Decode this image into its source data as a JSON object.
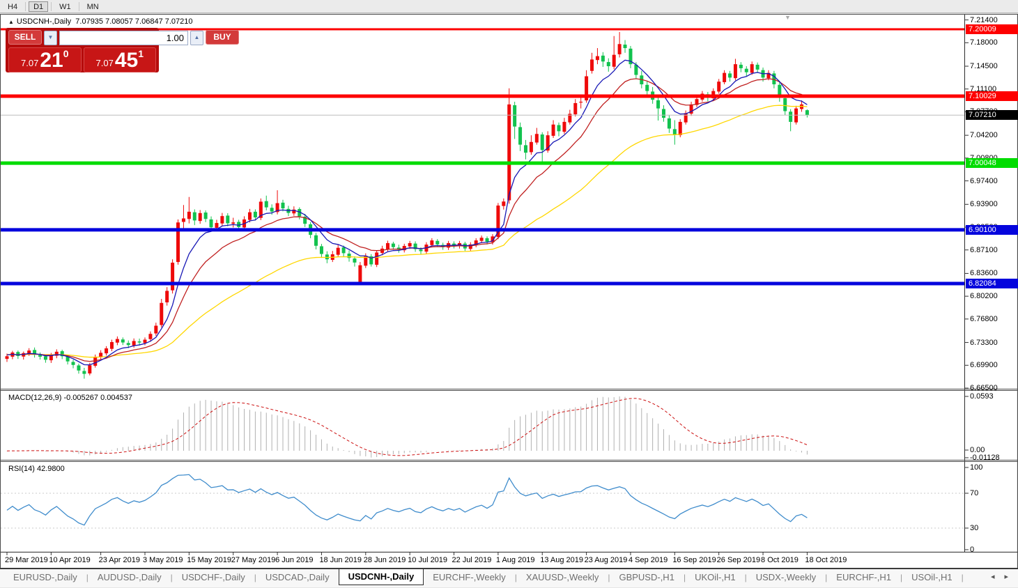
{
  "toolbar": {
    "timeframes": [
      "H4",
      "D1",
      "W1",
      "MN"
    ],
    "active_timeframe": "D1"
  },
  "chart": {
    "title": {
      "expand_icon": "▲",
      "symbol_period": "USDCNH-,Daily",
      "ohlc": "7.07935 7.08057 7.06847 7.07210"
    },
    "shift_marker_icon": "▼",
    "trade_panel": {
      "sell_label": "SELL",
      "buy_label": "BUY",
      "volume": "1.00",
      "volume_down_icon": "▼",
      "volume_up_icon": "▲",
      "sell_price_small": "7.07",
      "sell_price_big": "21",
      "sell_price_sup": "0",
      "buy_price_small": "7.07",
      "buy_price_big": "45",
      "buy_price_sup": "1"
    },
    "price_axis": {
      "ticks": [
        "7.21400",
        "7.18000",
        "7.14500",
        "7.11100",
        "7.07700",
        "7.04200",
        "7.00800",
        "6.97400",
        "6.93900",
        "6.90500",
        "6.87100",
        "6.83600",
        "6.80200",
        "6.76800",
        "6.73300",
        "6.69900",
        "6.66500"
      ]
    },
    "hlines": [
      {
        "label": "7.20009",
        "price": 7.20009,
        "color": "#fe0000",
        "width": 3
      },
      {
        "label": "7.10029",
        "price": 7.10029,
        "color": "#fe0000",
        "width": 5
      },
      {
        "label": "7.00048",
        "price": 7.00048,
        "color": "#00dc00",
        "width": 5
      },
      {
        "label": "6.90100",
        "price": 6.901,
        "color": "#0505dd",
        "width": 5
      },
      {
        "label": "6.82084",
        "price": 6.82084,
        "color": "#0505dd",
        "width": 5
      }
    ],
    "current_price": {
      "label": "7.07210",
      "price": 7.0721,
      "line_color": "#bcbcbc",
      "badge_bg": "#000000"
    },
    "colors": {
      "bull": "#ee0a0a",
      "bear": "#12c24e",
      "ma_fast": "#1717b5",
      "ma_mid": "#c02020",
      "ma_slow": "#ffd700"
    },
    "ma_periods": {
      "fast": 7,
      "mid": 14,
      "slow": 45
    },
    "date_axis": {
      "labels": [
        {
          "text": "29 Mar 2019",
          "i": 0
        },
        {
          "text": "10 Apr 2019",
          "i": 8
        },
        {
          "text": "23 Apr 2019",
          "i": 17
        },
        {
          "text": "3 May 2019",
          "i": 25
        },
        {
          "text": "15 May 2019",
          "i": 33
        },
        {
          "text": "27 May 2019",
          "i": 41
        },
        {
          "text": "6 Jun 2019",
          "i": 49
        },
        {
          "text": "18 Jun 2019",
          "i": 57
        },
        {
          "text": "28 Jun 2019",
          "i": 65
        },
        {
          "text": "10 Jul 2019",
          "i": 73
        },
        {
          "text": "22 Jul 2019",
          "i": 81
        },
        {
          "text": "1 Aug 2019",
          "i": 89
        },
        {
          "text": "13 Aug 2019",
          "i": 97
        },
        {
          "text": "23 Aug 2019",
          "i": 105
        },
        {
          "text": "4 Sep 2019",
          "i": 113
        },
        {
          "text": "16 Sep 2019",
          "i": 121
        },
        {
          "text": "26 Sep 2019",
          "i": 129
        },
        {
          "text": "8 Oct 2019",
          "i": 137
        },
        {
          "text": "18 Oct 2019",
          "i": 145
        }
      ]
    },
    "candles": [
      [
        6.7085,
        6.7165,
        6.704,
        6.7125
      ],
      [
        6.7118,
        6.7205,
        6.708,
        6.718
      ],
      [
        6.7188,
        6.721,
        6.7085,
        6.7128
      ],
      [
        6.712,
        6.7195,
        6.7075,
        6.7172
      ],
      [
        6.7165,
        6.7245,
        6.713,
        6.721
      ],
      [
        6.7218,
        6.7255,
        6.7105,
        6.7146
      ],
      [
        6.714,
        6.718,
        6.7075,
        6.7118
      ],
      [
        6.7125,
        6.715,
        6.7028,
        6.7072
      ],
      [
        6.7065,
        6.7175,
        6.7025,
        6.714
      ],
      [
        6.7132,
        6.7228,
        6.7095,
        6.7192
      ],
      [
        6.72,
        6.7222,
        6.7082,
        6.7125
      ],
      [
        6.7118,
        6.714,
        6.7002,
        6.7048
      ],
      [
        6.704,
        6.7075,
        6.6945,
        6.6995
      ],
      [
        6.6988,
        6.7015,
        6.6865,
        6.6912
      ],
      [
        6.6905,
        6.6952,
        6.679,
        6.6862
      ],
      [
        6.6868,
        6.7025,
        6.684,
        6.699
      ],
      [
        6.6982,
        6.715,
        6.6955,
        6.7118
      ],
      [
        6.711,
        6.7215,
        6.707,
        6.7176
      ],
      [
        6.7168,
        6.7275,
        6.7135,
        6.7242
      ],
      [
        6.7235,
        6.7372,
        6.72,
        6.7336
      ],
      [
        6.7328,
        6.742,
        6.729,
        6.7382
      ],
      [
        6.7375,
        6.7405,
        6.7292,
        6.733
      ],
      [
        6.7322,
        6.736,
        6.7245,
        6.7292
      ],
      [
        6.7285,
        6.739,
        6.7252,
        6.7352
      ],
      [
        6.7345,
        6.7388,
        6.7285,
        6.733
      ],
      [
        6.7322,
        6.7405,
        6.7288,
        6.7372
      ],
      [
        6.738,
        6.7495,
        6.734,
        6.7458
      ],
      [
        6.7465,
        6.7625,
        6.7428,
        6.758
      ],
      [
        6.759,
        6.798,
        6.7555,
        6.792
      ],
      [
        6.7928,
        6.8155,
        6.788,
        6.81
      ],
      [
        6.8108,
        6.857,
        6.806,
        6.852
      ],
      [
        6.853,
        6.9165,
        6.849,
        6.912
      ],
      [
        6.9128,
        6.938,
        6.902,
        6.918
      ],
      [
        6.9172,
        6.95,
        6.9105,
        6.928
      ],
      [
        6.9272,
        6.9315,
        6.908,
        6.915
      ],
      [
        6.9142,
        6.9305,
        6.91,
        6.926
      ],
      [
        6.9268,
        6.93,
        6.9125,
        6.9172
      ],
      [
        6.9165,
        6.921,
        6.8995,
        6.9048
      ],
      [
        6.904,
        6.916,
        6.9,
        6.9112
      ],
      [
        6.9105,
        6.9262,
        6.9068,
        6.9215
      ],
      [
        6.9222,
        6.9258,
        6.9062,
        6.9108
      ],
      [
        6.91,
        6.919,
        6.9045,
        6.912
      ],
      [
        6.9128,
        6.916,
        6.9005,
        6.9052
      ],
      [
        6.9045,
        6.9212,
        6.901,
        6.9165
      ],
      [
        6.9158,
        6.9322,
        6.912,
        6.9272
      ],
      [
        6.928,
        6.9315,
        6.9148,
        6.9195
      ],
      [
        6.9188,
        6.9478,
        6.9155,
        6.943
      ],
      [
        6.9438,
        6.952,
        6.93,
        6.9345
      ],
      [
        6.9338,
        6.939,
        6.9235,
        6.9282
      ],
      [
        6.9275,
        6.96,
        6.924,
        6.9408
      ],
      [
        6.9415,
        6.9458,
        6.9285,
        6.933
      ],
      [
        6.9322,
        6.9368,
        6.9215,
        6.9262
      ],
      [
        6.9255,
        6.936,
        6.922,
        6.9312
      ],
      [
        6.932,
        6.9345,
        6.9165,
        6.9212
      ],
      [
        6.9205,
        6.9248,
        6.9052,
        6.91
      ],
      [
        6.9092,
        6.9125,
        6.8885,
        6.8935
      ],
      [
        6.8928,
        6.8965,
        6.8718,
        6.8772
      ],
      [
        6.8765,
        6.88,
        6.8592,
        6.865
      ],
      [
        6.8642,
        6.869,
        6.8512,
        6.857
      ],
      [
        6.8562,
        6.8695,
        6.853,
        6.8645
      ],
      [
        6.8638,
        6.879,
        6.8605,
        6.8742
      ],
      [
        6.8748,
        6.8775,
        6.861,
        6.8662
      ],
      [
        6.8655,
        6.8702,
        6.8535,
        6.859
      ],
      [
        6.8582,
        6.8615,
        6.8462,
        6.8522
      ],
      [
        6.823,
        6.853,
        6.82,
        6.8482
      ],
      [
        6.8475,
        6.866,
        6.844,
        6.8622
      ],
      [
        6.8615,
        6.8648,
        6.8462,
        6.8495
      ],
      [
        6.8488,
        6.8705,
        6.8455,
        6.8672
      ],
      [
        6.8665,
        6.8772,
        6.863,
        6.873
      ],
      [
        6.8722,
        6.8848,
        6.869,
        6.8812
      ],
      [
        6.8805,
        6.8832,
        6.8712,
        6.8752
      ],
      [
        6.8745,
        6.8788,
        6.8668,
        6.8712
      ],
      [
        6.8705,
        6.8802,
        6.8672,
        6.877
      ],
      [
        6.8762,
        6.8845,
        6.8725,
        6.8812
      ],
      [
        6.8805,
        6.8838,
        6.8682,
        6.8722
      ],
      [
        6.8715,
        6.8748,
        6.8648,
        6.8692
      ],
      [
        6.8685,
        6.8825,
        6.8652,
        6.879
      ],
      [
        6.8782,
        6.8885,
        6.8748,
        6.8852
      ],
      [
        6.8845,
        6.8872,
        6.8752,
        6.8792
      ],
      [
        6.8785,
        6.8818,
        6.8712,
        6.8752
      ],
      [
        6.8745,
        6.8845,
        6.871,
        6.8812
      ],
      [
        6.8805,
        6.8838,
        6.8732,
        6.8772
      ],
      [
        6.8765,
        6.8845,
        6.873,
        6.8812
      ],
      [
        6.8805,
        6.8832,
        6.8695,
        6.8732
      ],
      [
        6.8725,
        6.8825,
        6.869,
        6.8792
      ],
      [
        6.8785,
        6.8885,
        6.875,
        6.8852
      ],
      [
        6.8845,
        6.8925,
        6.881,
        6.8892
      ],
      [
        6.8885,
        6.8912,
        6.8792,
        6.8832
      ],
      [
        6.8825,
        6.8945,
        6.879,
        6.8912
      ],
      [
        6.8905,
        6.941,
        6.887,
        6.9372
      ],
      [
        6.9365,
        6.9478,
        6.9312,
        6.9432
      ],
      [
        6.945,
        7.112,
        6.94,
        7.088
      ],
      [
        7.0868,
        7.092,
        7.0365,
        7.055
      ],
      [
        7.0542,
        7.061,
        7.0185,
        7.028
      ],
      [
        7.0272,
        7.035,
        7.006,
        7.016
      ],
      [
        7.0168,
        7.042,
        7.013,
        7.032
      ],
      [
        7.0312,
        7.053,
        7.028,
        7.044
      ],
      [
        7.0432,
        7.0465,
        7.002,
        7.02
      ],
      [
        7.0192,
        7.048,
        7.016,
        7.042
      ],
      [
        7.0412,
        7.0645,
        7.038,
        7.058
      ],
      [
        7.0572,
        7.061,
        7.0405,
        7.048
      ],
      [
        7.0472,
        7.068,
        7.044,
        7.062
      ],
      [
        7.0612,
        7.08,
        7.058,
        7.074
      ],
      [
        7.0732,
        7.096,
        7.07,
        7.09
      ],
      [
        7.0908,
        7.099,
        7.082,
        7.092
      ],
      [
        7.094,
        7.139,
        7.0905,
        7.13
      ],
      [
        7.138,
        7.165,
        7.134,
        7.155
      ],
      [
        7.1542,
        7.172,
        7.148,
        7.16
      ],
      [
        7.1608,
        7.166,
        7.144,
        7.152
      ],
      [
        7.1512,
        7.1568,
        7.1368,
        7.145
      ],
      [
        7.1442,
        7.19,
        7.1405,
        7.162
      ],
      [
        7.1628,
        7.196,
        7.158,
        7.178
      ],
      [
        7.1772,
        7.184,
        7.165,
        7.172
      ],
      [
        7.1712,
        7.1752,
        7.142,
        7.148
      ],
      [
        7.1472,
        7.151,
        7.1262,
        7.132
      ],
      [
        7.1312,
        7.138,
        7.112,
        7.118
      ],
      [
        7.1172,
        7.1225,
        7.102,
        7.108
      ],
      [
        7.1072,
        7.114,
        7.089,
        7.095
      ],
      [
        7.0942,
        7.098,
        7.064,
        7.082
      ],
      [
        7.0812,
        7.0868,
        7.0622,
        7.068
      ],
      [
        7.0672,
        7.072,
        7.0455,
        7.052
      ],
      [
        7.0512,
        7.0645,
        7.028,
        7.043
      ],
      [
        7.0422,
        7.066,
        7.039,
        7.062
      ],
      [
        7.0612,
        7.079,
        7.058,
        7.075
      ],
      [
        7.0742,
        7.092,
        7.071,
        7.088
      ],
      [
        7.0872,
        7.1,
        7.084,
        7.096
      ],
      [
        7.0952,
        7.108,
        7.092,
        7.104
      ],
      [
        7.1032,
        7.1065,
        7.0925,
        7.098
      ],
      [
        7.0972,
        7.112,
        7.094,
        7.108
      ],
      [
        7.1072,
        7.126,
        7.104,
        7.122
      ],
      [
        7.1212,
        7.139,
        7.118,
        7.135
      ],
      [
        7.1342,
        7.138,
        7.122,
        7.128
      ],
      [
        7.1272,
        7.156,
        7.124,
        7.148
      ],
      [
        7.1472,
        7.151,
        7.136,
        7.142
      ],
      [
        7.1412,
        7.145,
        7.13,
        7.136
      ],
      [
        7.1352,
        7.152,
        7.132,
        7.148
      ],
      [
        7.1472,
        7.1505,
        7.135,
        7.14
      ],
      [
        7.1392,
        7.143,
        7.122,
        7.128
      ],
      [
        7.1272,
        7.139,
        7.124,
        7.135
      ],
      [
        7.1342,
        7.138,
        7.112,
        7.118
      ],
      [
        7.1172,
        7.121,
        7.092,
        7.098
      ],
      [
        7.0972,
        7.101,
        7.072,
        7.078
      ],
      [
        7.0772,
        7.081,
        7.048,
        7.062
      ],
      [
        7.0612,
        7.086,
        7.058,
        7.082
      ],
      [
        7.0812,
        7.094,
        7.077,
        7.088
      ],
      [
        7.0794,
        7.0806,
        7.0685,
        7.0721
      ]
    ]
  },
  "macd": {
    "label": "MACD(12,26,9) -0.005267 0.004537",
    "params": {
      "fast": 12,
      "slow": 26,
      "signal": 9
    },
    "axis": [
      "0.0593",
      "0.00",
      "-0.01128"
    ],
    "colors": {
      "hist": "#b0b0b0",
      "signal": "#cc0f0f"
    }
  },
  "rsi": {
    "label": "RSI(14) 42.9800",
    "period": 14,
    "levels": [
      "100",
      "70",
      "30",
      "0"
    ],
    "color": "#3f8ccc",
    "level_line_color": "#c8c8c8"
  },
  "tabs": {
    "items": [
      "EURUSD-,Daily",
      "AUDUSD-,Daily",
      "USDCHF-,Daily",
      "USDCAD-,Daily",
      "USDCNH-,Daily",
      "EURCHF-,Weekly",
      "XAUUSD-,Weekly",
      "GBPUSD-,H1",
      "UKOil-,H1",
      "USDX-,Weekly",
      "EURCHF-,H1",
      "USOil-,H1"
    ],
    "active": "USDCNH-,Daily",
    "scroll_left_icon": "◂",
    "scroll_right_icon": "▸"
  }
}
